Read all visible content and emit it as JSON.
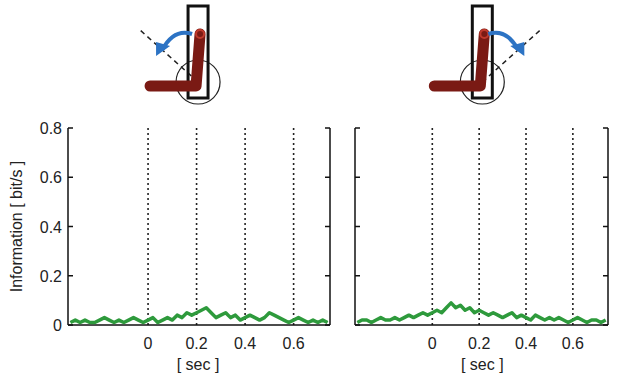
{
  "chart_data": [
    {
      "type": "line",
      "y_label": "Information [ bit/s ]",
      "x_label": "[ sec ]",
      "color": "#2e9a3c",
      "line_style": "solid",
      "grid": true,
      "tick_labels": true,
      "xlim": [
        -0.33,
        0.75
      ],
      "ylim": [
        0,
        0.8
      ],
      "xticks": [
        0,
        0.2,
        0.4,
        0.6
      ],
      "yticks": [
        0,
        0.2,
        0.4,
        0.6,
        0.8
      ],
      "x": [
        -0.32,
        -0.3,
        -0.28,
        -0.26,
        -0.24,
        -0.22,
        -0.2,
        -0.18,
        -0.16,
        -0.14,
        -0.12,
        -0.1,
        -0.08,
        -0.06,
        -0.04,
        -0.02,
        0,
        0.02,
        0.04,
        0.06,
        0.08,
        0.1,
        0.12,
        0.14,
        0.16,
        0.18,
        0.2,
        0.22,
        0.24,
        0.26,
        0.28,
        0.3,
        0.32,
        0.34,
        0.36,
        0.38,
        0.4,
        0.42,
        0.44,
        0.46,
        0.48,
        0.5,
        0.52,
        0.54,
        0.56,
        0.58,
        0.6,
        0.62,
        0.64,
        0.66,
        0.68,
        0.7,
        0.72,
        0.74
      ],
      "values": [
        0.01,
        0.02,
        0.01,
        0.02,
        0.01,
        0.01,
        0.02,
        0.03,
        0.02,
        0.01,
        0.02,
        0.01,
        0.02,
        0.03,
        0.02,
        0.01,
        0.02,
        0.03,
        0.01,
        0.02,
        0.03,
        0.02,
        0.04,
        0.03,
        0.05,
        0.04,
        0.05,
        0.06,
        0.07,
        0.05,
        0.03,
        0.04,
        0.05,
        0.03,
        0.04,
        0.02,
        0.03,
        0.04,
        0.03,
        0.02,
        0.03,
        0.05,
        0.04,
        0.03,
        0.02,
        0.01,
        0.02,
        0.03,
        0.02,
        0.01,
        0.02,
        0.01,
        0.02,
        0.01
      ]
    },
    {
      "type": "line",
      "x_label": "[ sec ]",
      "color": "#2e9a3c",
      "line_style": "solid",
      "grid": true,
      "tick_labels": "x",
      "xlim": [
        -0.33,
        0.75
      ],
      "ylim": [
        0,
        0.8
      ],
      "xticks": [
        0,
        0.2,
        0.4,
        0.6
      ],
      "yticks": [
        0,
        0.2,
        0.4,
        0.6,
        0.8
      ],
      "x": [
        -0.32,
        -0.3,
        -0.28,
        -0.26,
        -0.24,
        -0.22,
        -0.2,
        -0.18,
        -0.16,
        -0.14,
        -0.12,
        -0.1,
        -0.08,
        -0.06,
        -0.04,
        -0.02,
        0,
        0.02,
        0.04,
        0.06,
        0.08,
        0.1,
        0.12,
        0.14,
        0.16,
        0.18,
        0.2,
        0.22,
        0.24,
        0.26,
        0.28,
        0.3,
        0.32,
        0.34,
        0.36,
        0.38,
        0.4,
        0.42,
        0.44,
        0.46,
        0.48,
        0.5,
        0.52,
        0.54,
        0.56,
        0.58,
        0.6,
        0.62,
        0.64,
        0.66,
        0.68,
        0.7,
        0.72,
        0.74
      ],
      "values": [
        0.01,
        0.02,
        0.02,
        0.01,
        0.02,
        0.03,
        0.02,
        0.02,
        0.03,
        0.02,
        0.03,
        0.04,
        0.03,
        0.04,
        0.05,
        0.04,
        0.05,
        0.06,
        0.05,
        0.07,
        0.09,
        0.07,
        0.08,
        0.06,
        0.07,
        0.05,
        0.06,
        0.05,
        0.04,
        0.05,
        0.04,
        0.03,
        0.04,
        0.05,
        0.03,
        0.04,
        0.03,
        0.02,
        0.04,
        0.03,
        0.02,
        0.03,
        0.02,
        0.03,
        0.02,
        0.01,
        0.02,
        0.03,
        0.02,
        0.01,
        0.02,
        0.02,
        0.01,
        0.02
      ]
    }
  ]
}
